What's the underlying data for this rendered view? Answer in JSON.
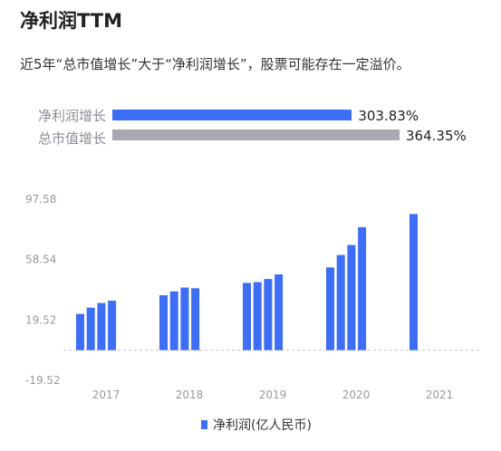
{
  "header": {
    "title": "净利润TTM",
    "subtitle": "近5年“总市值增长”大于“净利润增长”，股票可能存在一定溢价。"
  },
  "comparison": [
    {
      "label": "净利润增长",
      "value": 303.83,
      "value_text": "303.83%",
      "color": "#3d6ef5"
    },
    {
      "label": "总市值增长",
      "value": 364.35,
      "value_text": "364.35%",
      "color": "#a6a9b2"
    }
  ],
  "chart_data": {
    "type": "bar",
    "ylim": [
      -19.52,
      97.58
    ],
    "yticks": [
      "97.58",
      "58.54",
      "19.52",
      "-19.52"
    ],
    "ytick_values": [
      97.58,
      58.54,
      19.52,
      -19.52
    ],
    "xtick_labels": [
      "2017",
      "2018",
      "2019",
      "2020",
      "2021"
    ],
    "groups": [
      {
        "year": "2017",
        "values": [
          23.5,
          27.5,
          30.5,
          32.0
        ]
      },
      {
        "year": "2018",
        "values": [
          35.5,
          38.0,
          40.5,
          40.0
        ]
      },
      {
        "year": "2019",
        "values": [
          43.5,
          44.0,
          46.0,
          49.0
        ]
      },
      {
        "year": "2020",
        "values": [
          53.5,
          61.5,
          68.0,
          79.5
        ]
      },
      {
        "year": "2021",
        "values": [
          88.0
        ]
      }
    ],
    "series_color": "#3d6ef5",
    "legend": {
      "label": "净利润(亿人民币)",
      "position": "bottom-center"
    },
    "grid": false,
    "zero_line": "dashed"
  }
}
